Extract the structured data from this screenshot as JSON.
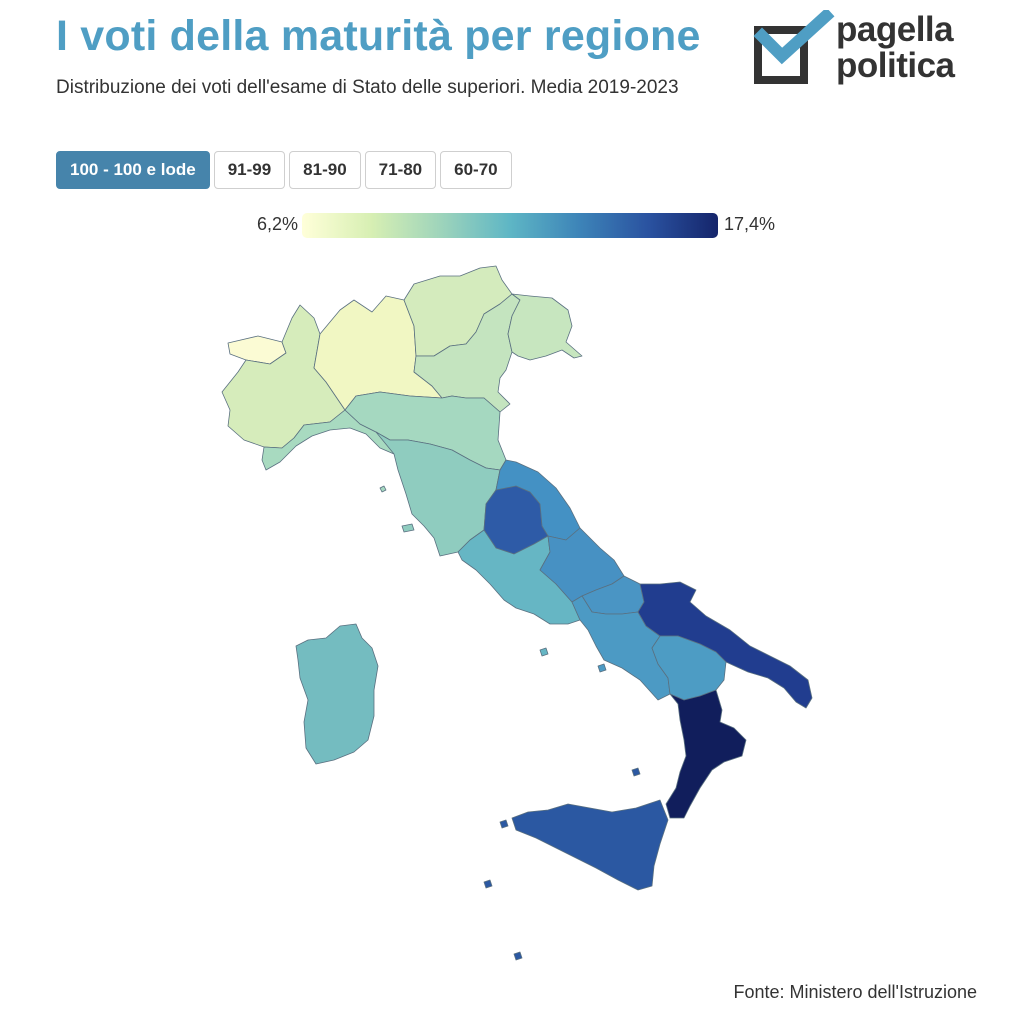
{
  "header": {
    "title": "I voti della maturità per regione",
    "subtitle": "Distribuzione dei voti dell'esame di Stato delle superiori. Media 2019-2023"
  },
  "logo": {
    "line1": "pagella",
    "line2": "politica",
    "mark_color": "#4f9ec4",
    "text_color": "#333333"
  },
  "tabs": [
    {
      "label": "100 - 100 e lode",
      "active": true
    },
    {
      "label": "91-99",
      "active": false
    },
    {
      "label": "81-90",
      "active": false
    },
    {
      "label": "71-80",
      "active": false
    },
    {
      "label": "60-70",
      "active": false
    }
  ],
  "legend": {
    "min_label": "6,2%",
    "max_label": "17,4%",
    "colors": [
      "#ffffd9",
      "#d7efb3",
      "#9ed4bb",
      "#5eb6c5",
      "#3d84b8",
      "#2a52a0",
      "#15256b"
    ]
  },
  "regions": {
    "valle_daosta": {
      "color": "#fbfbd4"
    },
    "piemonte": {
      "color": "#d6ecbb"
    },
    "lombardia": {
      "color": "#f1f7c3"
    },
    "trentino_alto_adige": {
      "color": "#d4ebbd"
    },
    "veneto": {
      "color": "#c4e4bf"
    },
    "friuli_venezia_giulia": {
      "color": "#c7e6bf"
    },
    "liguria": {
      "color": "#a8dac0"
    },
    "emilia_romagna": {
      "color": "#a5d8c0"
    },
    "toscana": {
      "color": "#8fccbf"
    },
    "umbria": {
      "color": "#2e5ba7"
    },
    "marche": {
      "color": "#4491c4"
    },
    "lazio": {
      "color": "#66b6c4"
    },
    "abruzzo": {
      "color": "#4791c3"
    },
    "molise": {
      "color": "#4a95c4"
    },
    "campania": {
      "color": "#4c9ac4"
    },
    "puglia": {
      "color": "#213d8f"
    },
    "basilicata": {
      "color": "#4d9cc4"
    },
    "calabria": {
      "color": "#111e5c"
    },
    "sicilia": {
      "color": "#2b58a2"
    },
    "sardegna": {
      "color": "#74bcc0"
    }
  },
  "source": "Fonte: Ministero dell'Istruzione"
}
